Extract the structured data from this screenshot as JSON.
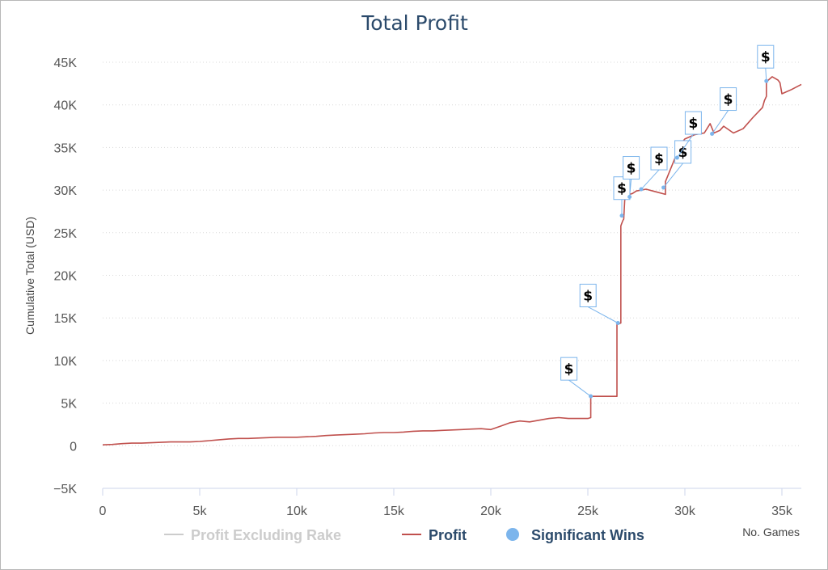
{
  "chart_data": {
    "type": "line",
    "title": "Total Profit",
    "xlabel": "No. Games",
    "ylabel": "Cumulative Total (USD)",
    "xlim": [
      0,
      36000
    ],
    "ylim": [
      -5000,
      45000
    ],
    "x_ticks": [
      "0",
      "5k",
      "10k",
      "15k",
      "20k",
      "25k",
      "30k",
      "35k"
    ],
    "y_ticks": [
      "−5K",
      "0",
      "5K",
      "10K",
      "15K",
      "20K",
      "25K",
      "30K",
      "35K",
      "40K",
      "45K"
    ],
    "grid": "horizontal dotted",
    "legend_position": "bottom",
    "series": [
      {
        "name": "Profit Excluding Rake",
        "color": "#cccccc",
        "visible": false,
        "values": []
      },
      {
        "name": "Profit",
        "color": "#c0504d",
        "x": [
          0,
          500,
          1000,
          1500,
          2000,
          2500,
          3000,
          3500,
          4000,
          4500,
          5000,
          5500,
          6000,
          6500,
          7000,
          7500,
          8000,
          8500,
          9000,
          9500,
          10000,
          10500,
          11000,
          11500,
          12000,
          12500,
          13000,
          13500,
          14000,
          14500,
          15000,
          15500,
          16000,
          16500,
          17000,
          17500,
          18000,
          18500,
          19000,
          19500,
          20000,
          20500,
          21000,
          21500,
          22000,
          22500,
          23000,
          23500,
          24000,
          24500,
          25000,
          25150,
          25150,
          25500,
          26000,
          26500,
          26500,
          26700,
          26700,
          26800,
          26850,
          26900,
          27000,
          27300,
          27500,
          28000,
          28500,
          29000,
          29000,
          29500,
          29700,
          30000,
          30500,
          31000,
          31300,
          31500,
          31800,
          32000,
          32500,
          33000,
          33500,
          34000,
          34100,
          34200,
          34200,
          34500,
          34800,
          34900,
          35000,
          35500,
          36000
        ],
        "y": [
          100,
          150,
          250,
          300,
          300,
          350,
          400,
          450,
          450,
          450,
          500,
          600,
          700,
          800,
          850,
          850,
          900,
          950,
          1000,
          1000,
          1000,
          1050,
          1100,
          1200,
          1250,
          1300,
          1350,
          1400,
          1500,
          1550,
          1550,
          1600,
          1700,
          1750,
          1750,
          1800,
          1850,
          1900,
          1950,
          2000,
          1900,
          2300,
          2700,
          2900,
          2800,
          3000,
          3200,
          3300,
          3200,
          3200,
          3200,
          3300,
          5800,
          5800,
          5800,
          5800,
          14200,
          14400,
          25800,
          26400,
          26600,
          28800,
          29400,
          29600,
          29900,
          30100,
          29800,
          29500,
          31000,
          33800,
          35200,
          36000,
          36500,
          36700,
          37800,
          36700,
          37000,
          37500,
          36700,
          37200,
          38500,
          39700,
          40500,
          41000,
          42700,
          43300,
          42900,
          42600,
          41300,
          41800,
          42400
        ]
      },
      {
        "name": "Significant Wins",
        "color": "#7cb5ec",
        "marker_label": "$",
        "x": [
          25150,
          26550,
          26750,
          27150,
          27750,
          28900,
          29600,
          31400,
          34200
        ],
        "y": [
          5800,
          14400,
          27000,
          29200,
          30100,
          30300,
          33800,
          36600,
          42800
        ]
      }
    ]
  }
}
